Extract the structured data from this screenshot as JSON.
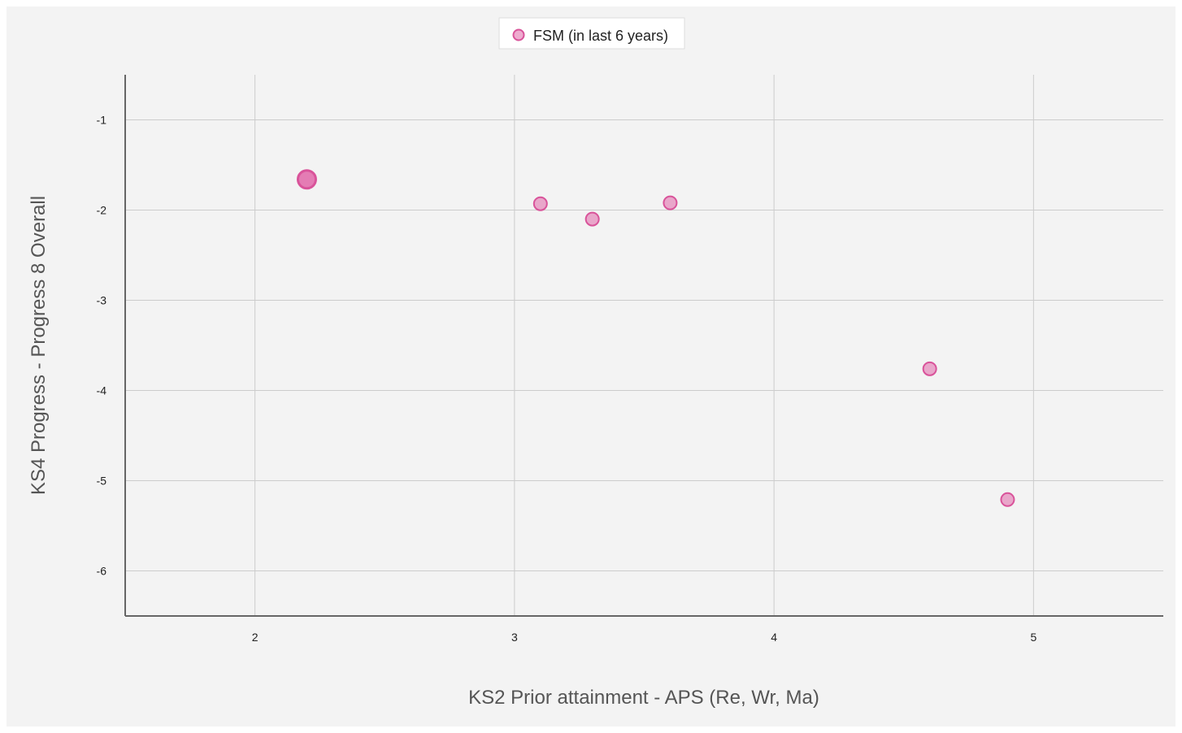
{
  "chart_data": {
    "type": "scatter",
    "xlabel": "KS2 Prior attainment - APS (Re, Wr, Ma)",
    "ylabel": "KS4 Progress - Progress 8 Overall",
    "xlim": [
      1.5,
      5.5
    ],
    "ylim": [
      -6.5,
      -0.5
    ],
    "xticks": [
      2,
      3,
      4,
      5
    ],
    "yticks": [
      -1,
      -2,
      -3,
      -4,
      -5,
      -6
    ],
    "grid": true,
    "legend_position": "top-center",
    "series": [
      {
        "name": "FSM (in last 6 years)",
        "color": "#e066a8",
        "points": [
          {
            "x": 2.2,
            "y": -1.66,
            "size": "large"
          },
          {
            "x": 3.1,
            "y": -1.93,
            "size": "normal"
          },
          {
            "x": 3.3,
            "y": -2.1,
            "size": "normal"
          },
          {
            "x": 3.6,
            "y": -1.92,
            "size": "normal"
          },
          {
            "x": 4.6,
            "y": -3.76,
            "size": "normal"
          },
          {
            "x": 4.9,
            "y": -5.21,
            "size": "normal"
          }
        ]
      }
    ]
  }
}
